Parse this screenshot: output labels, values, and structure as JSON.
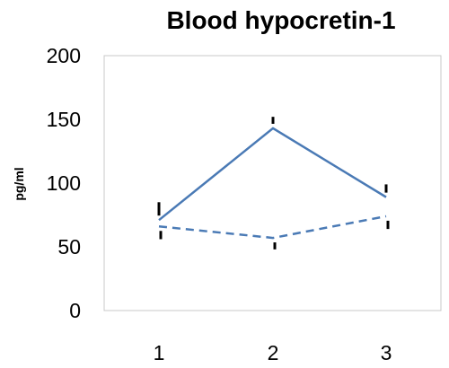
{
  "chart_data": {
    "type": "line",
    "title": "Blood hypocretin-1",
    "xlabel": "",
    "ylabel": "pg/ml",
    "x": [
      1,
      2,
      3
    ],
    "x_tick_labels": [
      "1",
      "2",
      "3"
    ],
    "y_tick_labels": [
      "0",
      "50",
      "100",
      "150",
      "200"
    ],
    "y_ticks": [
      0,
      50,
      100,
      150,
      200
    ],
    "ylim": [
      0,
      200
    ],
    "grid": false,
    "legend": "none",
    "series": [
      {
        "style": "solid",
        "color": "#4a7ab5",
        "values": [
          71,
          143,
          89
        ],
        "error": [
          14,
          9,
          10
        ]
      },
      {
        "style": "dashed",
        "color": "#4a7ab5",
        "values": [
          66,
          57,
          74
        ],
        "error": [
          10,
          9,
          10
        ]
      }
    ]
  }
}
